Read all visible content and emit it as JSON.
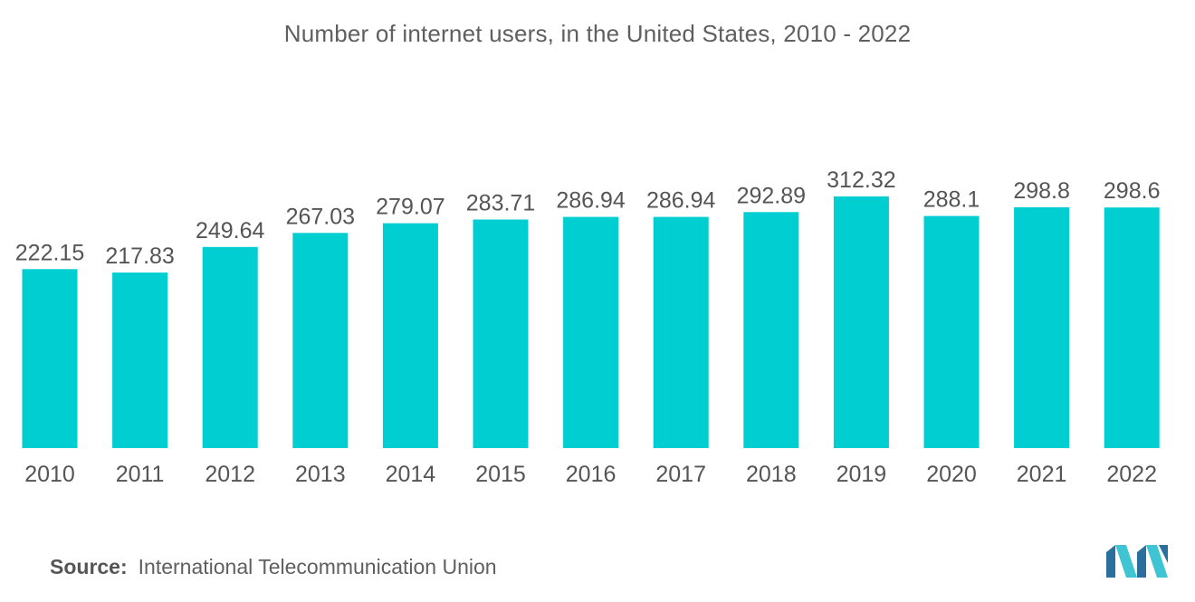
{
  "header": {
    "title": "Number of internet users, in the United States, 2010 - 2022"
  },
  "footer": {
    "source_label": "Source:",
    "source_text": "International Telecommunication Union"
  },
  "colors": {
    "bar": "#00CED1",
    "text": "#555555",
    "logo_dark": "#2a6f9e",
    "logo_light": "#3fc4d4"
  },
  "chart_data": {
    "type": "bar",
    "title": "Number of internet users, in the United States, 2010 - 2022",
    "xlabel": "",
    "ylabel": "",
    "categories": [
      "2010",
      "2011",
      "2012",
      "2013",
      "2014",
      "2015",
      "2016",
      "2017",
      "2018",
      "2019",
      "2020",
      "2021",
      "2022"
    ],
    "values": [
      222.15,
      217.83,
      249.64,
      267.03,
      279.07,
      283.71,
      286.94,
      286.94,
      292.89,
      312.32,
      288.1,
      298.8,
      298.6
    ],
    "value_labels": [
      "222.15",
      "217.83",
      "249.64",
      "267.03",
      "279.07",
      "283.71",
      "286.94",
      "286.94",
      "292.89",
      "312.32",
      "288.1",
      "298.8",
      "298.6"
    ],
    "ylim": [
      0,
      312.32
    ],
    "grid": false,
    "legend": "none"
  }
}
